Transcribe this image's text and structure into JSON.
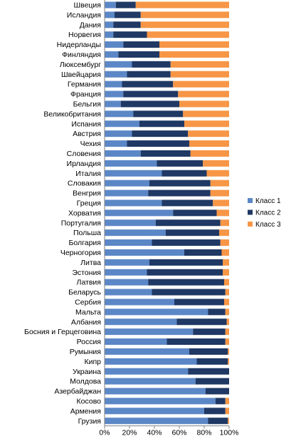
{
  "chart_data": {
    "type": "bar",
    "orientation": "horizontal",
    "stacking": "percent",
    "title": "",
    "xlabel": "",
    "ylabel": "",
    "xlim": [
      0,
      100
    ],
    "x_ticks": [
      "0%",
      "20%",
      "40%",
      "60%",
      "80%",
      "100%"
    ],
    "grid": false,
    "legend_position": "right",
    "categories": [
      "Швеция",
      "Исландия",
      "Дания",
      "Норвегия",
      "Нидерланды",
      "Финляндия",
      "Люксембург",
      "Швейцария",
      "Германия",
      "Франция",
      "Бельгия",
      "Великобритания",
      "Испания",
      "Австрия",
      "Чехия",
      "Словения",
      "Ирландия",
      "Италия",
      "Словакия",
      "Венгрия",
      "Греция",
      "Хорватия",
      "Португалия",
      "Польша",
      "Болгария",
      "Черногория",
      "Литва",
      "Эстония",
      "Латвия",
      "Беларусь",
      "Сербия",
      "Мальта",
      "Албания",
      "Босния и Герцеговина",
      "Россия",
      "Румыния",
      "Кипр",
      "Украина",
      "Молдова",
      "Азербайджан",
      "Косово",
      "Армения",
      "Грузия"
    ],
    "series": [
      {
        "name": "Класс 1",
        "color": "#5b87c6",
        "values": [
          9,
          8,
          7,
          7,
          15,
          11,
          22,
          18,
          14,
          15,
          13,
          23,
          28,
          22,
          18,
          29,
          42,
          46,
          36,
          35,
          46,
          55,
          41,
          49,
          38,
          64,
          36,
          34,
          35,
          38,
          56,
          83,
          58,
          71,
          50,
          68,
          74,
          67,
          73,
          81,
          89,
          80,
          83
        ]
      },
      {
        "name": "Класс 2",
        "color": "#1f3864",
        "values": [
          16,
          21,
          22,
          27,
          29,
          33,
          31,
          35,
          41,
          44,
          47,
          40,
          36,
          45,
          50,
          40,
          37,
          36,
          49,
          50,
          41,
          35,
          52,
          43,
          55,
          30,
          59,
          61,
          61,
          59,
          40,
          14,
          40,
          26,
          47,
          31,
          25,
          33,
          27,
          19,
          8,
          17,
          16
        ]
      },
      {
        "name": "Класс 3",
        "color": "#f79646",
        "values": [
          75,
          71,
          71,
          66,
          56,
          56,
          47,
          47,
          45,
          41,
          40,
          37,
          36,
          33,
          32,
          31,
          21,
          18,
          15,
          15,
          13,
          10,
          7,
          8,
          7,
          6,
          5,
          5,
          4,
          3,
          4,
          3,
          2,
          3,
          3,
          1,
          1,
          0,
          0,
          0,
          3,
          3,
          1
        ]
      }
    ]
  }
}
